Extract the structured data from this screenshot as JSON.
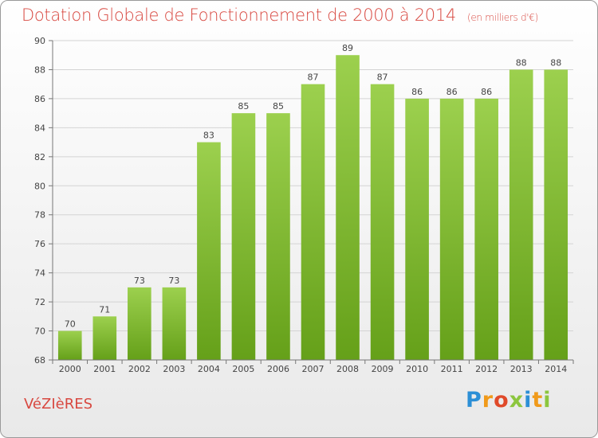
{
  "header": {
    "title": "Dotation Globale de Fonctionnement de 2000 à 2014",
    "subtitle": "(en milliers d'€)"
  },
  "footer": {
    "commune": "VéZIèRES",
    "logo_text": "Proxiti",
    "logo_letters": [
      "P",
      "r",
      "o",
      "x",
      "i",
      "t",
      "i"
    ],
    "logo_colors": [
      "#2c8fd6",
      "#f09a1a",
      "#e04a2a",
      "#8cc63e",
      "#2c8fd6",
      "#f09a1a",
      "#8cc63e"
    ]
  },
  "chart_data": {
    "type": "bar",
    "categories": [
      "2000",
      "2001",
      "2002",
      "2003",
      "2004",
      "2005",
      "2006",
      "2007",
      "2008",
      "2009",
      "2010",
      "2011",
      "2012",
      "2013",
      "2014"
    ],
    "values": [
      70,
      71,
      73,
      73,
      83,
      85,
      85,
      87,
      89,
      87,
      86,
      86,
      86,
      88,
      88
    ],
    "data_labels": [
      "70",
      "71",
      "73",
      "73",
      "83",
      "85",
      "85",
      "87",
      "89",
      "87",
      "86",
      "86",
      "86",
      "88",
      "88"
    ],
    "title": "Dotation Globale de Fonctionnement de 2000 à 2014",
    "subtitle": "(en milliers d'€)",
    "xlabel": "",
    "ylabel": "",
    "ylim": [
      68,
      90
    ],
    "yticks": [
      68,
      70,
      72,
      74,
      76,
      78,
      80,
      82,
      84,
      86,
      88,
      90
    ],
    "ytick_labels": [
      "68",
      "70",
      "72",
      "74",
      "76",
      "78",
      "80",
      "82",
      "84",
      "86",
      "88",
      "90"
    ],
    "grid": true,
    "legend": "none",
    "bar_color_top": "#9cd04e",
    "bar_color_bottom": "#65a019"
  }
}
